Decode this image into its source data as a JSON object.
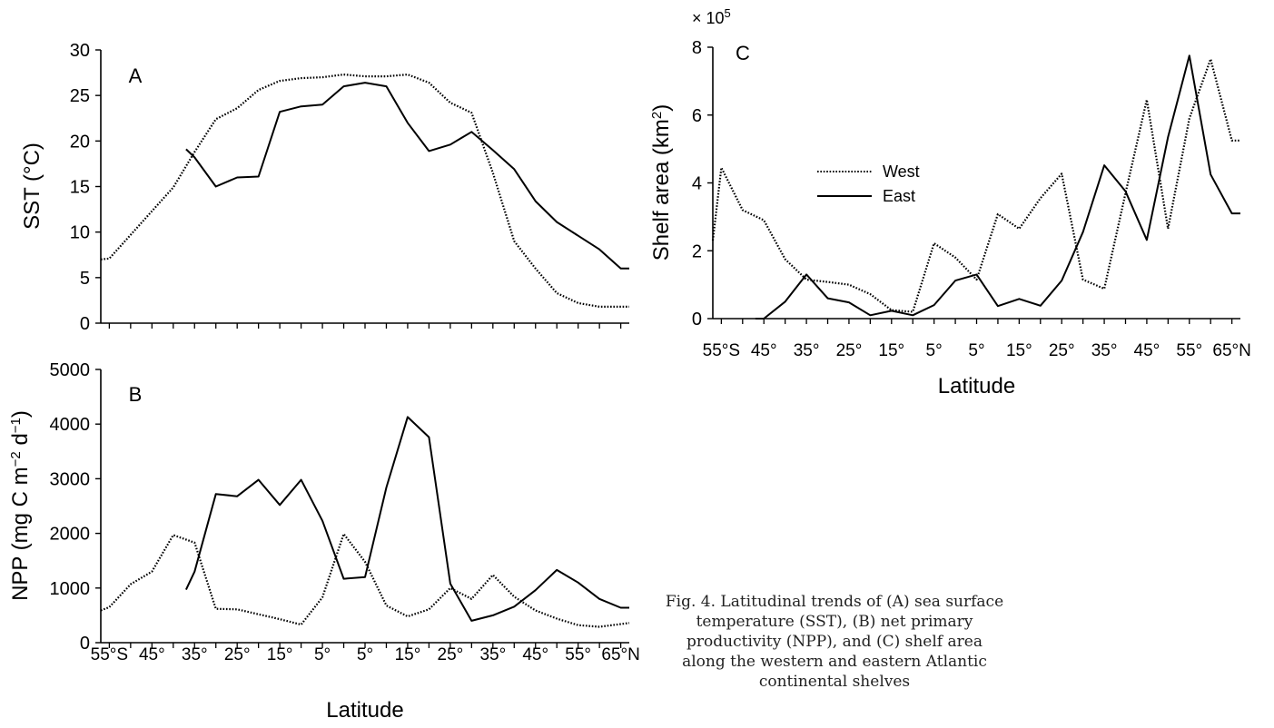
{
  "caption": "Fig. 4. Latitudinal trends of (A) sea surface temperature (SST), (B) net primary productivity (NPP), and (C) shelf area along the western and eastern Atlantic continental shelves",
  "colors": {
    "line": "#000000",
    "background": "#ffffff"
  },
  "line_styles": {
    "West": "dotted",
    "East": "solid"
  },
  "x_ticks": [
    "55°S",
    "45°",
    "35°",
    "25°",
    "15°",
    "5°",
    "5°",
    "15°",
    "25°",
    "35°",
    "45°",
    "55°",
    "65°N"
  ],
  "chart_data": [
    {
      "panel": "A",
      "type": "line",
      "ylabel": "SST (°C)",
      "xlabel": "",
      "ylim": [
        0,
        30
      ],
      "yticks": [
        "0",
        "5",
        "10",
        "15",
        "20",
        "25",
        "30"
      ],
      "xlim": [
        -57,
        67
      ],
      "series": [
        {
          "x": [
            -57,
            -55,
            -50,
            -45,
            -40,
            -35,
            -30,
            -25,
            -20,
            -15,
            -10,
            -5,
            0,
            5,
            10,
            15,
            20,
            25,
            30,
            35,
            40,
            45,
            50,
            55,
            60,
            65,
            67
          ],
          "y": [
            7,
            7.1,
            9.7,
            12.3,
            14.9,
            18.8,
            22.4,
            23.6,
            25.6,
            26.6,
            26.9,
            27.0,
            27.3,
            27.1,
            27.1,
            27.3,
            26.4,
            24.2,
            23.1,
            16.5,
            9.0,
            6.0,
            3.3,
            2.2,
            1.8,
            1.8,
            1.8
          ]
        },
        {
          "x": [
            -37,
            -35,
            -30,
            -25,
            -20,
            -15,
            -10,
            -5,
            0,
            5,
            10,
            15,
            20,
            25,
            30,
            35,
            40,
            45,
            50,
            55,
            60,
            65,
            67
          ],
          "y": [
            19.1,
            18.2,
            15.0,
            16.0,
            16.1,
            23.2,
            23.8,
            24.0,
            26.0,
            26.4,
            26.0,
            22.0,
            18.9,
            19.6,
            21.0,
            19.0,
            16.9,
            13.4,
            11.1,
            9.6,
            8.1,
            6.0,
            6.0
          ]
        }
      ]
    },
    {
      "panel": "B",
      "type": "line",
      "ylabel": "NPP (mg C m−2 d−1)",
      "xlabel": "Latitude",
      "ylim": [
        0,
        5000
      ],
      "yticks": [
        "0",
        "1000",
        "2000",
        "3000",
        "4000",
        "5000"
      ],
      "xlim": [
        -57,
        67
      ],
      "series": [
        {
          "x": [
            -57,
            -55,
            -50,
            -45,
            -40,
            -35,
            -30,
            -25,
            -20,
            -15,
            -10,
            -5,
            0,
            5,
            10,
            15,
            20,
            25,
            30,
            35,
            40,
            45,
            50,
            55,
            60,
            65,
            67
          ],
          "y": [
            590,
            650,
            1070,
            1300,
            1970,
            1830,
            620,
            610,
            520,
            430,
            330,
            830,
            1990,
            1480,
            680,
            480,
            610,
            1000,
            800,
            1240,
            840,
            590,
            440,
            320,
            290,
            340,
            360
          ]
        },
        {
          "x": [
            -37,
            -35,
            -30,
            -25,
            -20,
            -15,
            -10,
            -5,
            0,
            5,
            10,
            15,
            20,
            25,
            30,
            35,
            40,
            45,
            50,
            55,
            60,
            65,
            67
          ],
          "y": [
            970,
            1300,
            2720,
            2680,
            2980,
            2520,
            2980,
            2230,
            1170,
            1200,
            2840,
            4130,
            3760,
            1080,
            400,
            500,
            660,
            960,
            1330,
            1100,
            800,
            640,
            640
          ]
        }
      ]
    },
    {
      "panel": "C",
      "type": "line",
      "ylabel": "Shelf area (km2)",
      "xlabel": "Latitude",
      "multiplier": "× 10",
      "multiplier_exp": "5",
      "ylim": [
        0,
        800000
      ],
      "yticks": [
        "0",
        "2",
        "4",
        "6",
        "8"
      ],
      "xlim": [
        -57,
        67
      ],
      "legend": [
        "West",
        "East"
      ],
      "series": [
        {
          "name": "West",
          "x": [
            -57,
            -55,
            -50,
            -45,
            -40,
            -35,
            -30,
            -25,
            -20,
            -15,
            -10,
            -5,
            0,
            5,
            10,
            15,
            20,
            25,
            30,
            35,
            40,
            45,
            50,
            55,
            60,
            65,
            67
          ],
          "y": [
            230000,
            445000,
            320000,
            290000,
            175000,
            115000,
            108000,
            100000,
            72000,
            25000,
            20000,
            222000,
            180000,
            115000,
            308000,
            265000,
            355000,
            427000,
            115000,
            88000,
            370000,
            645000,
            265000,
            590000,
            765000,
            525000,
            525000
          ]
        },
        {
          "name": "East",
          "x": [
            -47,
            -45,
            -40,
            -35,
            -30,
            -25,
            -20,
            -15,
            -10,
            -5,
            0,
            5,
            10,
            15,
            20,
            25,
            30,
            35,
            40,
            45,
            50,
            55,
            60,
            65,
            67
          ],
          "y": [
            0,
            0,
            50000,
            130000,
            60000,
            48000,
            10000,
            23000,
            10000,
            40000,
            112000,
            130000,
            37000,
            58000,
            38000,
            112000,
            255000,
            452000,
            375000,
            232000,
            535000,
            775000,
            425000,
            310000,
            310000
          ]
        }
      ]
    }
  ]
}
